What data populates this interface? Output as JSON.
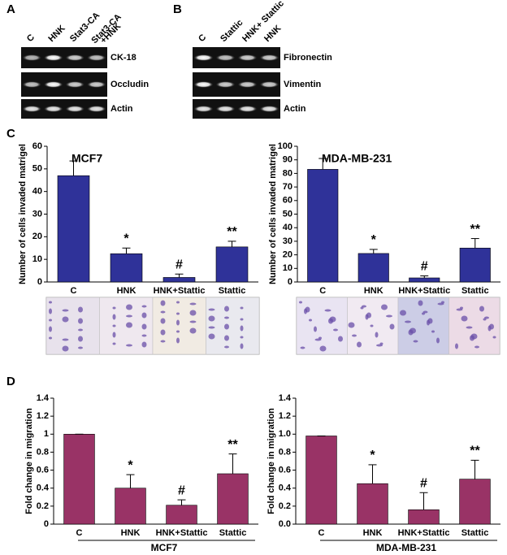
{
  "panel_labels": [
    "A",
    "B",
    "C",
    "D"
  ],
  "blots": [
    {
      "lanes": [
        "C",
        "HNK",
        "Stat3-CA",
        [
          "Stat3-CA",
          "+HNK"
        ]
      ],
      "bands": [
        "CK-18",
        "Occludin",
        "Actin"
      ]
    },
    {
      "lanes": [
        "C",
        "Stattic",
        "HNK+ Stattic",
        "HNK"
      ],
      "bands": [
        "Fibronectin",
        "Vimentin",
        "Actin"
      ]
    }
  ],
  "chart_data": [
    {
      "type": "bar",
      "title": "MCF7",
      "ylabel": "Number of cells invaded matrigel",
      "categories": [
        "C",
        "HNK",
        "HNK+Stattic",
        "Stattic"
      ],
      "values": [
        47,
        12.5,
        2,
        15.5
      ],
      "errors": [
        6.5,
        2.5,
        1.5,
        2.5
      ],
      "annotations": [
        null,
        "*",
        "#",
        "**"
      ],
      "color": "#2f3299",
      "ylim": [
        0,
        60
      ],
      "yticks": [
        0,
        10,
        20,
        30,
        40,
        50,
        60
      ]
    },
    {
      "type": "bar",
      "title": "MDA-MB-231",
      "ylabel": "Number of cells invaded matrigel",
      "categories": [
        "C",
        "HNK",
        "HNK+Stattic",
        "Stattic"
      ],
      "values": [
        83,
        21,
        3,
        25
      ],
      "errors": [
        8,
        3,
        1.5,
        7
      ],
      "annotations": [
        null,
        "*",
        "#",
        "**"
      ],
      "color": "#2f3299",
      "ylim": [
        0,
        100
      ],
      "yticks": [
        0,
        10,
        20,
        30,
        40,
        50,
        60,
        70,
        80,
        90,
        100
      ]
    },
    {
      "type": "bar",
      "xlabel": "MCF7",
      "ylabel": "Fold change in migration",
      "categories": [
        "C",
        "HNK",
        "HNK+Stattic",
        "Stattic"
      ],
      "values": [
        1.0,
        0.4,
        0.21,
        0.56
      ],
      "errors": [
        0,
        0.15,
        0.06,
        0.22
      ],
      "annotations": [
        null,
        "*",
        "#",
        "**"
      ],
      "color": "#993366",
      "ylim": [
        0,
        1.4
      ],
      "yticks": [
        0,
        0.2,
        0.4,
        0.6,
        0.8,
        1,
        1.2,
        1.4
      ]
    },
    {
      "type": "bar",
      "xlabel": "MDA-MB-231",
      "ylabel": "Fold change in migration",
      "categories": [
        "C",
        "HNK",
        "HNK+Stattic",
        "Stattic"
      ],
      "values": [
        0.98,
        0.45,
        0.16,
        0.5
      ],
      "errors": [
        0,
        0.21,
        0.19,
        0.21
      ],
      "annotations": [
        null,
        "*",
        "#",
        "**"
      ],
      "color": "#993366",
      "ylim": [
        0,
        1.4
      ],
      "yticks": [
        {
          "value": 0,
          "label": "0.0"
        },
        0.2,
        0.4,
        0.6,
        0.8,
        {
          "value": 1,
          "label": "1.0"
        },
        1.2,
        1.4
      ]
    }
  ]
}
